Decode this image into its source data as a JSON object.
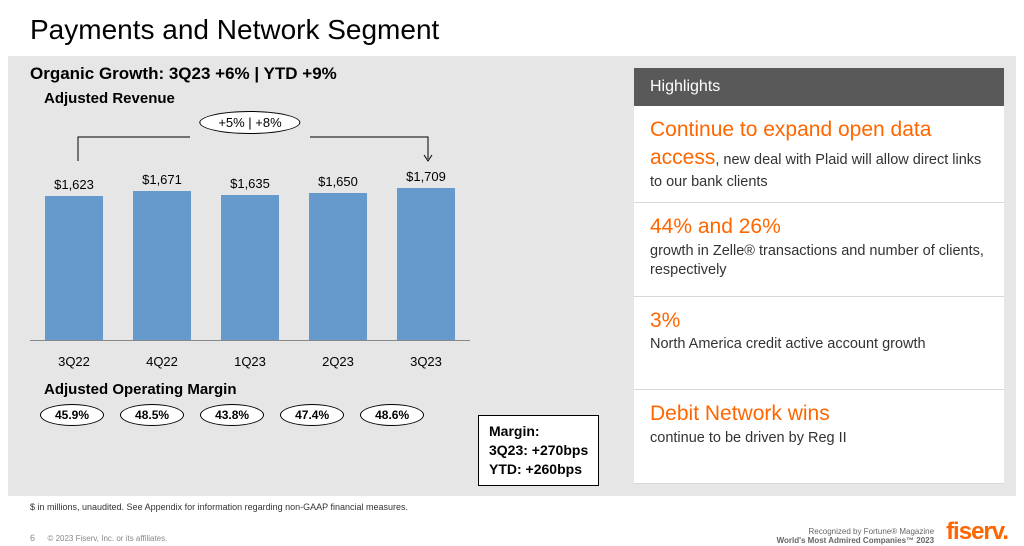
{
  "slide": {
    "title": "Payments and Network Segment",
    "subtitle": "Organic Growth: 3Q23 +6% | YTD +9%"
  },
  "revenue_chart": {
    "title": "Adjusted Revenue",
    "type": "bar",
    "annotation": "+5% | +8%",
    "categories": [
      "3Q22",
      "4Q22",
      "1Q23",
      "2Q23",
      "3Q23"
    ],
    "value_labels": [
      "$1,623",
      "$1,671",
      "$1,635",
      "$1,650",
      "$1,709"
    ],
    "values": [
      1623,
      1671,
      1635,
      1650,
      1709
    ],
    "bar_color": "#6699cc",
    "ylim_max": 1800,
    "background_color": "#e6e6e6",
    "baseline_color": "#888888"
  },
  "margin": {
    "title": "Adjusted Operating Margin",
    "values": [
      "45.9%",
      "48.5%",
      "43.8%",
      "47.4%",
      "48.6%"
    ],
    "box": {
      "line1": "Margin:",
      "line2": "3Q23: +270bps",
      "line3": "YTD: +260bps"
    }
  },
  "highlights": {
    "header": "Highlights",
    "lead_color": "#ff6600",
    "items": [
      {
        "lead": "Continue to expand open data access",
        "rest": ", new deal with Plaid will allow direct links to our bank clients"
      },
      {
        "lead": "44% and 26%",
        "rest": "growth in Zelle® transactions and number of clients, respectively"
      },
      {
        "lead": "3%",
        "rest": "North America credit active account growth"
      },
      {
        "lead": "Debit Network wins",
        "rest": "continue to be driven by Reg II"
      }
    ]
  },
  "footer": {
    "footnote": "$ in millions, unaudited. See Appendix for information regarding non-GAAP financial measures.",
    "page": "6",
    "copyright": "© 2023 Fiserv, Inc. or its affiliates.",
    "recognized_line1": "Recognized by Fortune® Magazine",
    "recognized_line2": "World's Most Admired Companies™ 2023",
    "logo": "fiserv."
  }
}
